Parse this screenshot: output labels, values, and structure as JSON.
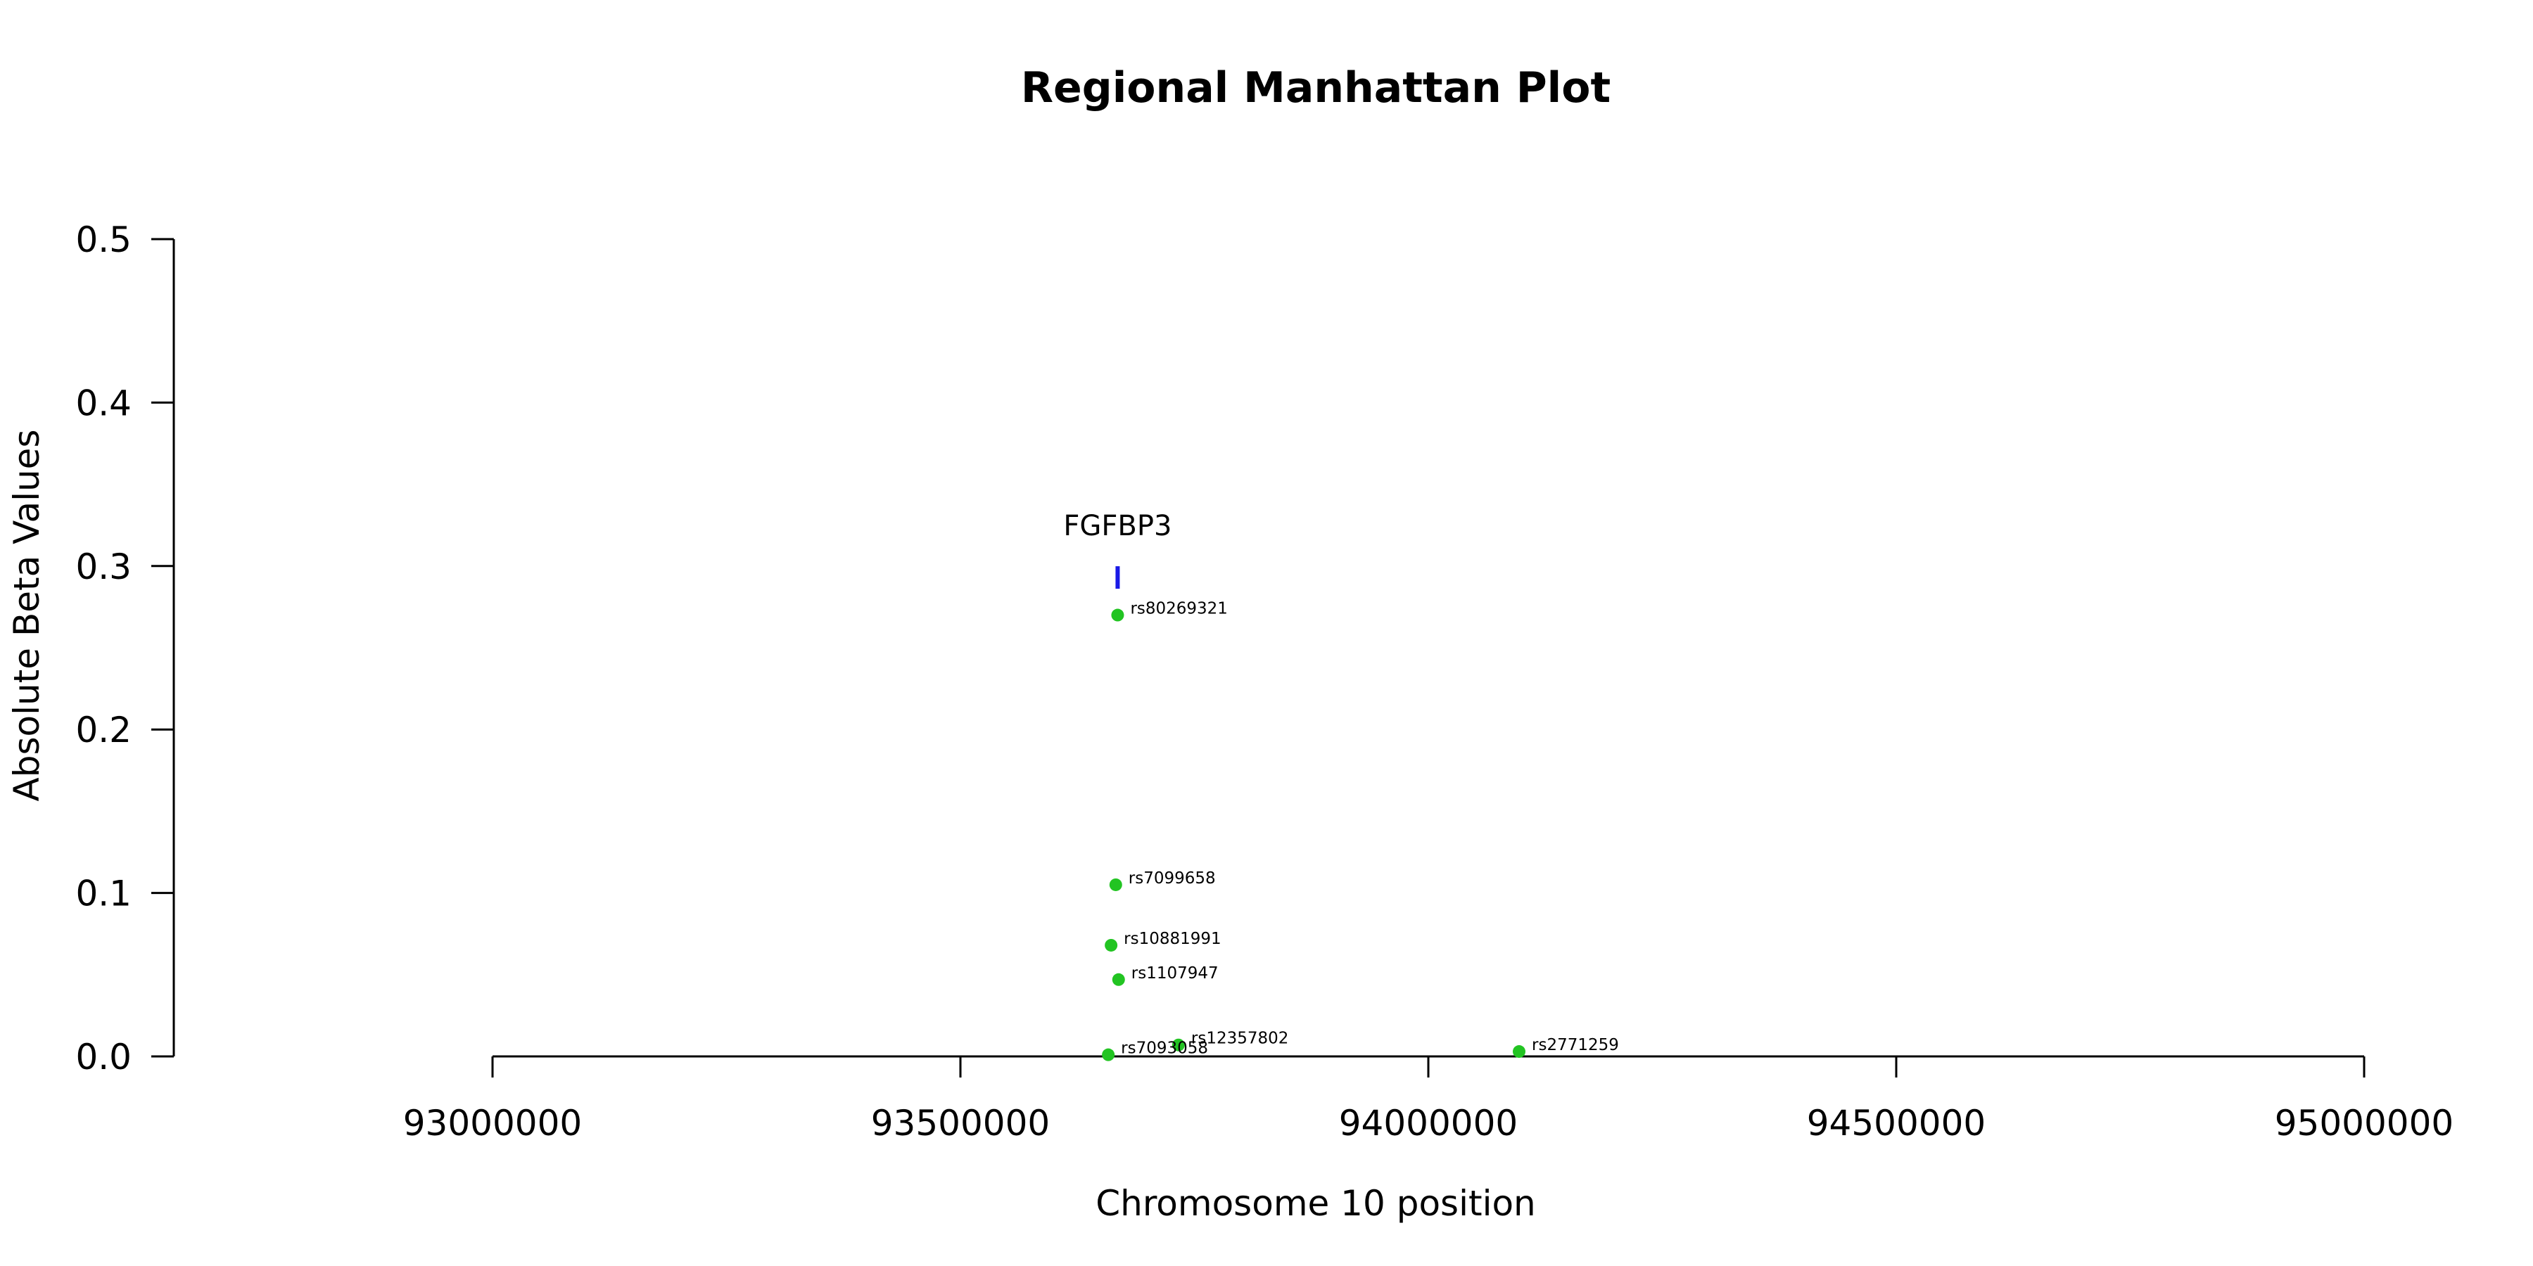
{
  "chart_data": {
    "type": "scatter",
    "title": "Regional Manhattan Plot",
    "xlabel": "Chromosome 10 position",
    "ylabel": "Absolute Beta Values",
    "xlim": [
      93000000,
      95000000
    ],
    "ylim": [
      0,
      0.5
    ],
    "x_ticks": [
      93000000,
      93500000,
      94000000,
      94500000,
      95000000
    ],
    "x_tick_labels": [
      "93000000",
      "93500000",
      "94000000",
      "94500000",
      "95000000"
    ],
    "y_ticks": [
      0,
      0.1,
      0.2,
      0.3,
      0.4,
      0.5
    ],
    "y_tick_labels": [
      "0.0",
      "0.1",
      "0.2",
      "0.3",
      "0.4",
      "0.5"
    ],
    "grid": false,
    "point_color": "#22c422",
    "gene_color": "#1a1ae6",
    "genes": [
      {
        "name": "FGFBP3",
        "start": 93666000,
        "end": 93670000,
        "y": 0.293
      }
    ],
    "points": [
      {
        "label": "rs80269321",
        "x": 93668000,
        "y": 0.27
      },
      {
        "label": "rs7099658",
        "x": 93666000,
        "y": 0.105
      },
      {
        "label": "rs10881991",
        "x": 93661000,
        "y": 0.068
      },
      {
        "label": "rs1107947",
        "x": 93669000,
        "y": 0.047
      },
      {
        "label": "rs12357802",
        "x": 93733000,
        "y": 0.007
      },
      {
        "label": "rs7093058",
        "x": 93658000,
        "y": 0.001
      },
      {
        "label": "rs2771259",
        "x": 94097000,
        "y": 0.003
      }
    ]
  }
}
